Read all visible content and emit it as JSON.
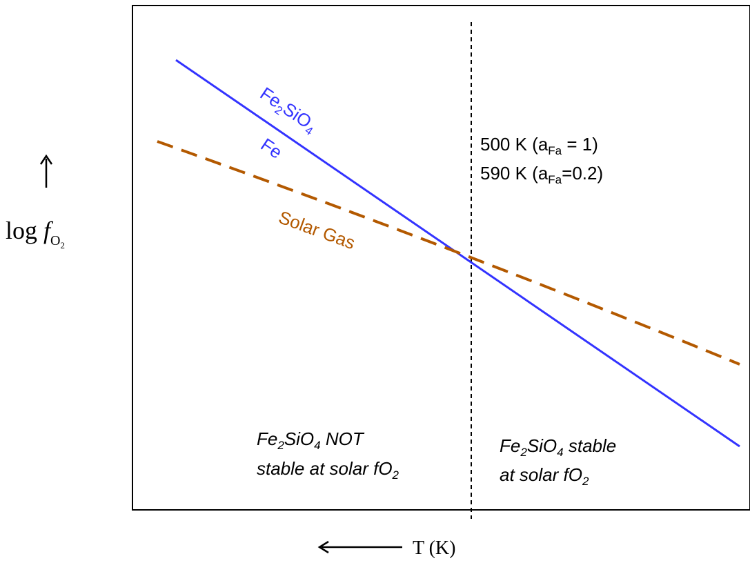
{
  "y_axis": {
    "arrow_glyph": "↑",
    "label_base": "log",
    "label_var": "f",
    "label_sub": "O",
    "label_subsub": "2"
  },
  "x_axis": {
    "arrow_glyph": "⟵",
    "label": "T (K)"
  },
  "lines": {
    "fe_oxide": {
      "label_top_a": "Fe",
      "label_top_sub": "2",
      "label_top_b": "SiO",
      "label_top_sub2": "4",
      "label_bottom": "Fe",
      "color": "#3333ff"
    },
    "solar": {
      "label": "Solar Gas",
      "color": "#b35900"
    }
  },
  "annotation": {
    "line1_a": "500 K (a",
    "line1_sub": "Fa",
    "line1_b": " = 1)",
    "line2_a": "590 K (a",
    "line2_sub": "Fa",
    "line2_b": "=0.2)"
  },
  "regions": {
    "left": {
      "l1_a": "Fe",
      "l1_sub": "2",
      "l1_b": "SiO",
      "l1_sub2": "4",
      "l1_c": " NOT",
      "l2_a": "stable at solar fO",
      "l2_sub": "2"
    },
    "right": {
      "l1_a": "Fe",
      "l1_sub": "2",
      "l1_b": "SiO",
      "l1_sub2": "4",
      "l1_c": " stable",
      "l2_a": "at solar fO",
      "l2_sub": "2"
    }
  }
}
